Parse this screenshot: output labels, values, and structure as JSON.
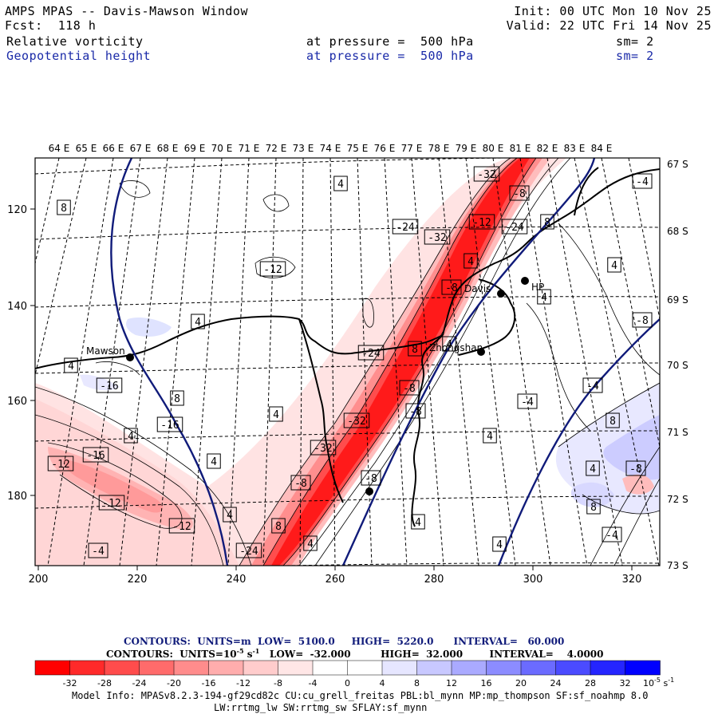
{
  "header": {
    "title": "AMPS MPAS -- Davis-Mawson Window",
    "forecast": "Fcst:  118 h",
    "init": "Init: 00 UTC Mon 10 Nov 25",
    "valid": "Valid: 22 UTC Fri 14 Nov 25",
    "field1_name": "Relative vorticity",
    "field1_level": "at pressure =  500 hPa",
    "field1_smooth": "sm= 2",
    "field2_name": "Geopotential height",
    "field2_level": "at pressure =  500 hPa",
    "field2_smooth": "sm= 2"
  },
  "map": {
    "lon_labels": [
      "64 E",
      "65 E",
      "66 E",
      "67 E",
      "68 E",
      "69 E",
      "70 E",
      "71 E",
      "72 E",
      "73 E",
      "74 E",
      "75 E",
      "76 E",
      "77 E",
      "78 E",
      "79 E",
      "80 E",
      "81 E",
      "82 E",
      "83 E",
      "84 E"
    ],
    "lat_labels": [
      "67 S",
      "68 S",
      "69 S",
      "70 S",
      "71 S",
      "72 S",
      "73 S"
    ],
    "x_ticks": [
      "200",
      "220",
      "240",
      "260",
      "280",
      "300",
      "320"
    ],
    "y_ticks": [
      "120",
      "140",
      "160",
      "180"
    ],
    "stations": [
      {
        "name": "Mawson"
      },
      {
        "name": "Davis"
      },
      {
        "name": "Zhongshan"
      },
      {
        "name": "HP"
      },
      {
        "name": ""
      }
    ],
    "contour_labels": [
      "-32",
      "-8",
      "4",
      "-4",
      "8",
      "-24",
      "-32",
      "-12",
      "-24",
      "8",
      "4",
      "-12",
      "4",
      "-8",
      "4",
      "4",
      "-24",
      "8",
      "-8",
      "4",
      "4",
      "-8",
      "-16",
      "8",
      "4",
      "-4",
      "-32",
      "4",
      "-16",
      "-4",
      "8",
      "-12",
      "-8",
      "4",
      "-16",
      "4",
      "-8",
      "4",
      "4",
      "8",
      "-12",
      "-32",
      "-12",
      "-8",
      "-24",
      "-4",
      "8",
      "4",
      "-4",
      "4",
      "-8",
      "4"
    ]
  },
  "footer": {
    "contours_line1": "CONTOURS:  UNITS=m  LOW=  5100.0     HIGH=  5220.0      INTERVAL=   60.000",
    "contours_line2_a": "CONTOURS:  UNITS=10",
    "contours_line2_sup": "-5",
    "contours_line2_b": " s",
    "contours_line2_sup2": "-1",
    "contours_line2_c": "   LOW=  -32.000         HIGH=  32.000        INTERVAL=    4.0000",
    "colorbar_ticks": [
      "-32",
      "-28",
      "-24",
      "-20",
      "-16",
      "-12",
      "-8",
      "-4",
      "0",
      "4",
      "8",
      "12",
      "16",
      "20",
      "24",
      "28",
      "32"
    ],
    "colorbar_unit": "10",
    "colorbar_unit_sup1": "-5",
    "colorbar_unit_s": " s",
    "colorbar_unit_sup2": "-1",
    "colorbar_colors": [
      "#ff0000",
      "#ff2a2a",
      "#ff4c4c",
      "#ff6b6b",
      "#ff8c8c",
      "#ffadad",
      "#ffcccc",
      "#ffe6e6",
      "#ffffff",
      "#ffffff",
      "#e6e6ff",
      "#c8c8ff",
      "#aaaaff",
      "#8c8cff",
      "#6b6bff",
      "#4b4bff",
      "#2525ff",
      "#0000ff"
    ],
    "model_info_1": "Model Info: MPASv8.2.3-194-gf29cd82c CU:cu_grell_freitas PBL:bl_mynn MP:mp_thompson SF:sf_noahmp 8.0",
    "model_info_2": "LW:rrtmg_lw SW:rrtmg_sw SFLAY:sf_mynn"
  }
}
